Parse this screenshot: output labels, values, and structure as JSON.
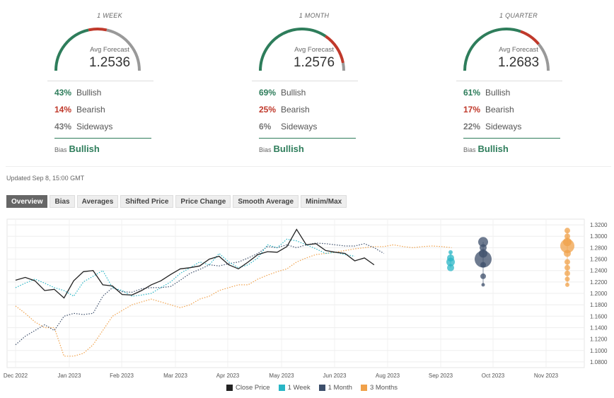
{
  "forecasts": [
    {
      "period": "1 WEEK",
      "avg_label": "Avg Forecast",
      "avg_value": "1.2536",
      "bullish_pct": "43%",
      "bearish_pct": "14%",
      "sideways_pct": "43%",
      "bullish_label": "Bullish",
      "bearish_label": "Bearish",
      "sideways_label": "Sideways",
      "bias_label": "Bias",
      "bias_value": "Bullish",
      "bullish_fraction": 0.43,
      "bearish_fraction": 0.14,
      "sideways_fraction": 0.43
    },
    {
      "period": "1 MONTH",
      "avg_label": "Avg Forecast",
      "avg_value": "1.2576",
      "bullish_pct": "69%",
      "bearish_pct": "25%",
      "sideways_pct": "6%",
      "bullish_label": "Bullish",
      "bearish_label": "Bearish",
      "sideways_label": "Sideways",
      "bias_label": "Bias",
      "bias_value": "Bullish",
      "bullish_fraction": 0.69,
      "bearish_fraction": 0.25,
      "sideways_fraction": 0.06
    },
    {
      "period": "1 QUARTER",
      "avg_label": "Avg Forecast",
      "avg_value": "1.2683",
      "bullish_pct": "61%",
      "bearish_pct": "17%",
      "sideways_pct": "22%",
      "bullish_label": "Bullish",
      "bearish_label": "Bearish",
      "sideways_label": "Sideways",
      "bias_label": "Bias",
      "bias_value": "Bullish",
      "bullish_fraction": 0.61,
      "bearish_fraction": 0.17,
      "sideways_fraction": 0.22
    }
  ],
  "colors": {
    "bullish": "#2e7d5b",
    "bearish": "#c0392b",
    "sideways": "#999999",
    "close": "#222222",
    "week": "#29b6c6",
    "month": "#3d4f6b",
    "quarter": "#f0a14a"
  },
  "updated": "Updated Sep 8, 15:00 GMT",
  "tabs": [
    "Overview",
    "Bias",
    "Averages",
    "Shifted Price",
    "Price Change",
    "Smooth Average",
    "Minim/Max"
  ],
  "active_tab": "Overview",
  "chart_data": {
    "type": "line",
    "x_ticks": [
      "Dec 2022",
      "Jan 2023",
      "Feb 2023",
      "Mar 2023",
      "Apr 2023",
      "May 2023",
      "Jun 2023",
      "Aug 2023",
      "Sep 2023",
      "Oct 2023",
      "Nov 2023"
    ],
    "y_ticks": [
      "1.0800",
      "1.1000",
      "1.1200",
      "1.1400",
      "1.1600",
      "1.1800",
      "1.2000",
      "1.2200",
      "1.2400",
      "1.2600",
      "1.2800",
      "1.3000",
      "1.3200"
    ],
    "ylim": [
      1.07,
      1.33
    ],
    "grid": true,
    "legend_position": "bottom-center",
    "series": [
      {
        "name": "Close Price",
        "style": "solid",
        "color": "#222222",
        "values": [
          [
            0,
            1.223
          ],
          [
            1,
            1.228
          ],
          [
            2,
            1.222
          ],
          [
            3,
            1.205
          ],
          [
            4,
            1.207
          ],
          [
            5,
            1.192
          ],
          [
            6,
            1.222
          ],
          [
            7,
            1.238
          ],
          [
            8,
            1.24
          ],
          [
            9,
            1.215
          ],
          [
            10,
            1.213
          ],
          [
            11,
            1.198
          ],
          [
            12,
            1.197
          ],
          [
            13,
            1.205
          ],
          [
            14,
            1.215
          ],
          [
            15,
            1.222
          ],
          [
            16,
            1.233
          ],
          [
            17,
            1.243
          ],
          [
            18,
            1.245
          ],
          [
            19,
            1.248
          ],
          [
            20,
            1.26
          ],
          [
            21,
            1.265
          ],
          [
            22,
            1.25
          ],
          [
            23,
            1.243
          ],
          [
            24,
            1.255
          ],
          [
            25,
            1.268
          ],
          [
            26,
            1.273
          ],
          [
            27,
            1.272
          ],
          [
            28,
            1.282
          ],
          [
            29,
            1.312
          ],
          [
            30,
            1.285
          ],
          [
            31,
            1.287
          ],
          [
            32,
            1.275
          ],
          [
            33,
            1.272
          ],
          [
            34,
            1.27
          ],
          [
            35,
            1.257
          ],
          [
            36,
            1.262
          ],
          [
            37,
            1.25
          ]
        ]
      },
      {
        "name": "1 Week",
        "style": "dotted",
        "color": "#29b6c6",
        "values": [
          [
            0,
            1.21
          ],
          [
            1,
            1.218
          ],
          [
            2,
            1.225
          ],
          [
            3,
            1.218
          ],
          [
            4,
            1.21
          ],
          [
            5,
            1.205
          ],
          [
            6,
            1.195
          ],
          [
            7,
            1.22
          ],
          [
            8,
            1.23
          ],
          [
            9,
            1.24
          ],
          [
            10,
            1.21
          ],
          [
            11,
            1.205
          ],
          [
            12,
            1.195
          ],
          [
            13,
            1.197
          ],
          [
            14,
            1.2
          ],
          [
            15,
            1.21
          ],
          [
            16,
            1.22
          ],
          [
            17,
            1.235
          ],
          [
            18,
            1.245
          ],
          [
            19,
            1.255
          ],
          [
            20,
            1.25
          ],
          [
            21,
            1.27
          ],
          [
            22,
            1.255
          ],
          [
            23,
            1.245
          ],
          [
            24,
            1.25
          ],
          [
            25,
            1.262
          ],
          [
            26,
            1.285
          ],
          [
            27,
            1.28
          ],
          [
            28,
            1.295
          ],
          [
            29,
            1.292
          ],
          [
            30,
            1.285
          ],
          [
            31,
            1.278
          ],
          [
            32,
            1.27
          ],
          [
            33,
            1.272
          ],
          [
            34,
            1.268
          ],
          [
            35,
            1.265
          ]
        ]
      },
      {
        "name": "1 Month",
        "style": "dotted",
        "color": "#3d4f6b",
        "values": [
          [
            0,
            1.11
          ],
          [
            1,
            1.125
          ],
          [
            2,
            1.135
          ],
          [
            3,
            1.145
          ],
          [
            4,
            1.135
          ],
          [
            5,
            1.16
          ],
          [
            6,
            1.165
          ],
          [
            7,
            1.163
          ],
          [
            8,
            1.165
          ],
          [
            9,
            1.195
          ],
          [
            10,
            1.21
          ],
          [
            11,
            1.203
          ],
          [
            12,
            1.202
          ],
          [
            13,
            1.208
          ],
          [
            14,
            1.21
          ],
          [
            15,
            1.21
          ],
          [
            16,
            1.212
          ],
          [
            17,
            1.223
          ],
          [
            18,
            1.235
          ],
          [
            19,
            1.242
          ],
          [
            20,
            1.25
          ],
          [
            21,
            1.248
          ],
          [
            22,
            1.252
          ],
          [
            23,
            1.255
          ],
          [
            24,
            1.262
          ],
          [
            25,
            1.27
          ],
          [
            26,
            1.282
          ],
          [
            27,
            1.28
          ],
          [
            28,
            1.285
          ],
          [
            29,
            1.28
          ],
          [
            30,
            1.285
          ],
          [
            31,
            1.288
          ],
          [
            32,
            1.287
          ],
          [
            33,
            1.285
          ],
          [
            34,
            1.283
          ],
          [
            35,
            1.283
          ],
          [
            36,
            1.287
          ],
          [
            37,
            1.28
          ],
          [
            38,
            1.27
          ]
        ]
      },
      {
        "name": "3 Months",
        "style": "dotted",
        "color": "#f0a14a",
        "values": [
          [
            0,
            1.178
          ],
          [
            1,
            1.165
          ],
          [
            2,
            1.15
          ],
          [
            3,
            1.14
          ],
          [
            4,
            1.14
          ],
          [
            5,
            1.09
          ],
          [
            6,
            1.09
          ],
          [
            7,
            1.095
          ],
          [
            8,
            1.11
          ],
          [
            9,
            1.135
          ],
          [
            10,
            1.16
          ],
          [
            11,
            1.17
          ],
          [
            12,
            1.18
          ],
          [
            13,
            1.185
          ],
          [
            14,
            1.19
          ],
          [
            15,
            1.185
          ],
          [
            16,
            1.18
          ],
          [
            17,
            1.175
          ],
          [
            18,
            1.18
          ],
          [
            19,
            1.19
          ],
          [
            20,
            1.195
          ],
          [
            21,
            1.205
          ],
          [
            22,
            1.21
          ],
          [
            23,
            1.215
          ],
          [
            24,
            1.215
          ],
          [
            25,
            1.225
          ],
          [
            26,
            1.232
          ],
          [
            27,
            1.238
          ],
          [
            28,
            1.243
          ],
          [
            29,
            1.255
          ],
          [
            30,
            1.262
          ],
          [
            31,
            1.268
          ],
          [
            32,
            1.27
          ],
          [
            33,
            1.272
          ],
          [
            34,
            1.275
          ],
          [
            35,
            1.278
          ],
          [
            36,
            1.28
          ],
          [
            37,
            1.282
          ],
          [
            38,
            1.282
          ],
          [
            39,
            1.285
          ],
          [
            40,
            1.282
          ],
          [
            41,
            1.28
          ],
          [
            42,
            1.282
          ],
          [
            43,
            1.283
          ],
          [
            44,
            1.282
          ],
          [
            45,
            1.28
          ]
        ]
      }
    ],
    "forecast_clusters": [
      {
        "name": "1 Week",
        "color": "#29b6c6",
        "bubbles": [
          [
            1.272,
            3
          ],
          [
            1.262,
            5
          ],
          [
            1.255,
            6
          ],
          [
            1.245,
            5
          ]
        ]
      },
      {
        "name": "1 Month",
        "color": "#3d4f6b",
        "bubbles": [
          [
            1.29,
            7
          ],
          [
            1.28,
            5
          ],
          [
            1.27,
            6
          ],
          [
            1.26,
            12
          ],
          [
            1.25,
            4
          ],
          [
            1.23,
            4
          ],
          [
            1.215,
            2.5
          ]
        ]
      },
      {
        "name": "3 Months",
        "color": "#f0a14a",
        "bubbles": [
          [
            1.31,
            4
          ],
          [
            1.3,
            4
          ],
          [
            1.29,
            6
          ],
          [
            1.283,
            10
          ],
          [
            1.27,
            5
          ],
          [
            1.255,
            4
          ],
          [
            1.245,
            4
          ],
          [
            1.235,
            4
          ],
          [
            1.225,
            3.5
          ],
          [
            1.215,
            3
          ]
        ]
      }
    ]
  },
  "legend": [
    "Close Price",
    "1 Week",
    "1 Month",
    "3 Months"
  ]
}
